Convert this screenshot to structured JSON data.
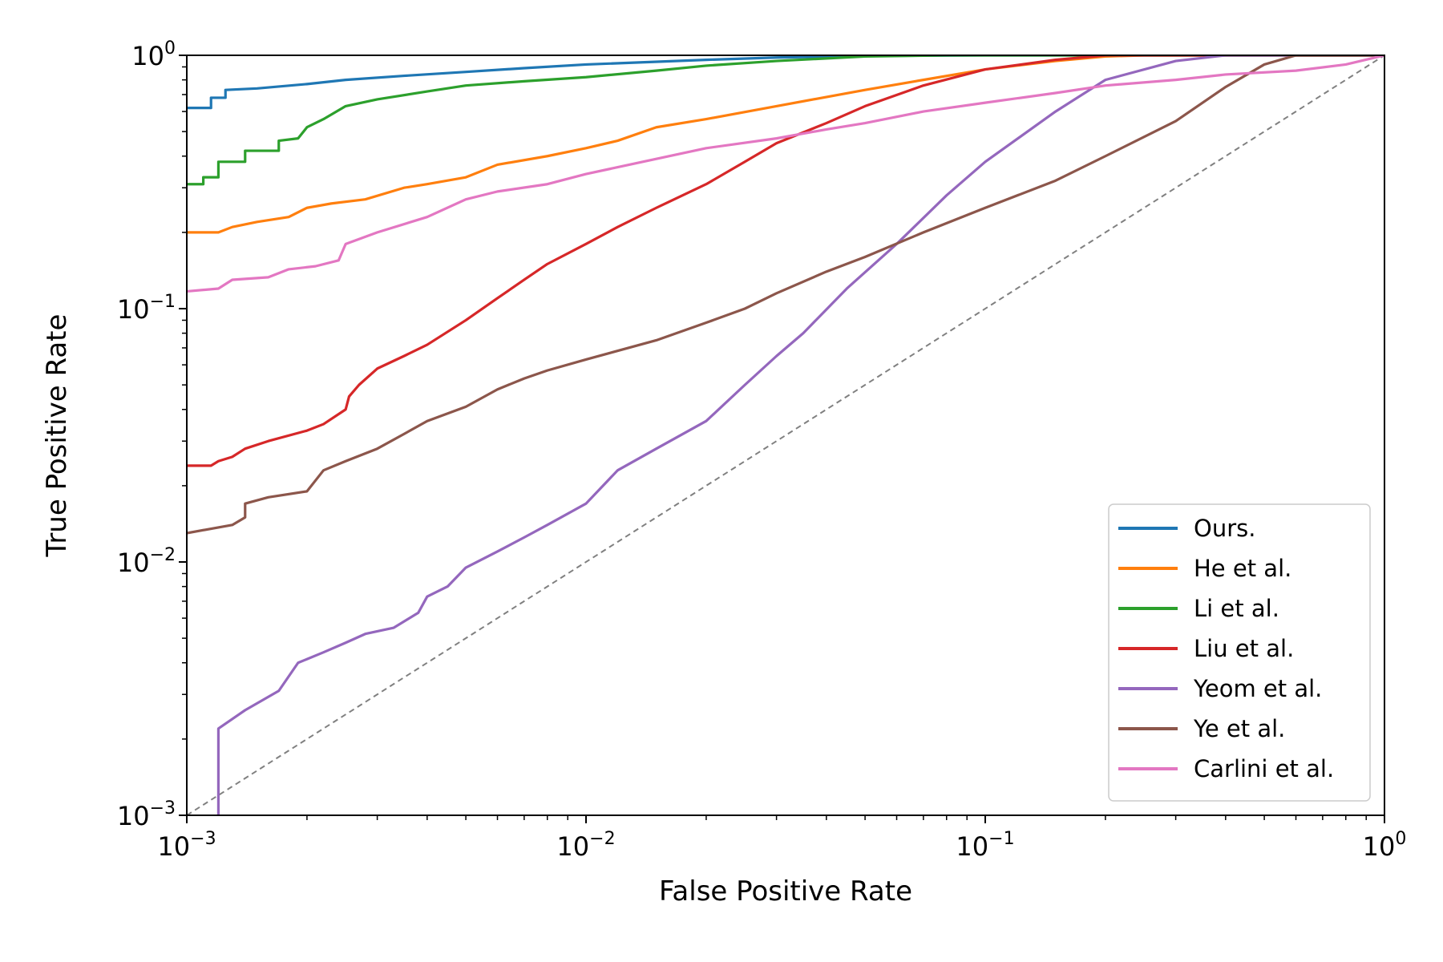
{
  "chart_data": {
    "type": "line",
    "title": "",
    "xlabel": "False Positive Rate",
    "ylabel": "True Positive Rate",
    "xscale": "log",
    "yscale": "log",
    "xlim": [
      0.001,
      1
    ],
    "ylim": [
      0.001,
      1
    ],
    "x_ticks": [
      {
        "value": 0.001,
        "base": "10",
        "exp": "−3"
      },
      {
        "value": 0.01,
        "base": "10",
        "exp": "−2"
      },
      {
        "value": 0.1,
        "base": "10",
        "exp": "−1"
      },
      {
        "value": 1,
        "base": "10",
        "exp": "0"
      }
    ],
    "y_ticks": [
      {
        "value": 0.001,
        "base": "10",
        "exp": "−3"
      },
      {
        "value": 0.01,
        "base": "10",
        "exp": "−2"
      },
      {
        "value": 0.1,
        "base": "10",
        "exp": "−1"
      },
      {
        "value": 1,
        "base": "10",
        "exp": "0"
      }
    ],
    "grid": false,
    "legend_position": "lower-right",
    "reference_line": {
      "style": "dashed",
      "color": "#808080",
      "points": [
        [
          0.001,
          0.001
        ],
        [
          1,
          1
        ]
      ]
    },
    "series": [
      {
        "name": "Ours.",
        "color": "#1f77b4",
        "points": [
          [
            0.001,
            0.62
          ],
          [
            0.00115,
            0.62
          ],
          [
            0.00115,
            0.68
          ],
          [
            0.00125,
            0.68
          ],
          [
            0.00125,
            0.73
          ],
          [
            0.0015,
            0.74
          ],
          [
            0.002,
            0.77
          ],
          [
            0.0025,
            0.8
          ],
          [
            0.0035,
            0.83
          ],
          [
            0.005,
            0.86
          ],
          [
            0.007,
            0.89
          ],
          [
            0.01,
            0.92
          ],
          [
            0.02,
            0.96
          ],
          [
            0.03,
            0.98
          ],
          [
            0.05,
            0.995
          ],
          [
            0.1,
            1.0
          ],
          [
            1,
            1.0
          ]
        ]
      },
      {
        "name": "He et al.",
        "color": "#ff7f0e",
        "points": [
          [
            0.001,
            0.2
          ],
          [
            0.0012,
            0.2
          ],
          [
            0.0013,
            0.21
          ],
          [
            0.0015,
            0.22
          ],
          [
            0.0018,
            0.23
          ],
          [
            0.002,
            0.25
          ],
          [
            0.0023,
            0.26
          ],
          [
            0.0028,
            0.27
          ],
          [
            0.0035,
            0.3
          ],
          [
            0.004,
            0.31
          ],
          [
            0.005,
            0.33
          ],
          [
            0.006,
            0.37
          ],
          [
            0.008,
            0.4
          ],
          [
            0.01,
            0.43
          ],
          [
            0.012,
            0.46
          ],
          [
            0.015,
            0.52
          ],
          [
            0.02,
            0.56
          ],
          [
            0.03,
            0.63
          ],
          [
            0.05,
            0.73
          ],
          [
            0.07,
            0.8
          ],
          [
            0.1,
            0.88
          ],
          [
            0.15,
            0.95
          ],
          [
            0.2,
            0.99
          ],
          [
            0.25,
            1.0
          ],
          [
            1,
            1.0
          ]
        ]
      },
      {
        "name": "Li et al.",
        "color": "#2ca02c",
        "points": [
          [
            0.001,
            0.31
          ],
          [
            0.0011,
            0.31
          ],
          [
            0.0011,
            0.33
          ],
          [
            0.0012,
            0.33
          ],
          [
            0.0012,
            0.38
          ],
          [
            0.0014,
            0.38
          ],
          [
            0.0014,
            0.42
          ],
          [
            0.0017,
            0.42
          ],
          [
            0.0017,
            0.46
          ],
          [
            0.0019,
            0.47
          ],
          [
            0.002,
            0.52
          ],
          [
            0.0022,
            0.56
          ],
          [
            0.0025,
            0.63
          ],
          [
            0.003,
            0.67
          ],
          [
            0.004,
            0.72
          ],
          [
            0.005,
            0.76
          ],
          [
            0.007,
            0.79
          ],
          [
            0.01,
            0.82
          ],
          [
            0.015,
            0.87
          ],
          [
            0.02,
            0.91
          ],
          [
            0.03,
            0.95
          ],
          [
            0.05,
            0.99
          ],
          [
            0.08,
            1.0
          ],
          [
            1,
            1.0
          ]
        ]
      },
      {
        "name": "Liu et al.",
        "color": "#d62728",
        "points": [
          [
            0.001,
            0.024
          ],
          [
            0.00115,
            0.024
          ],
          [
            0.0012,
            0.025
          ],
          [
            0.0013,
            0.026
          ],
          [
            0.0014,
            0.028
          ],
          [
            0.0016,
            0.03
          ],
          [
            0.002,
            0.033
          ],
          [
            0.0022,
            0.035
          ],
          [
            0.0025,
            0.04
          ],
          [
            0.00255,
            0.045
          ],
          [
            0.0027,
            0.05
          ],
          [
            0.003,
            0.058
          ],
          [
            0.0035,
            0.065
          ],
          [
            0.004,
            0.072
          ],
          [
            0.005,
            0.09
          ],
          [
            0.006,
            0.11
          ],
          [
            0.007,
            0.13
          ],
          [
            0.008,
            0.15
          ],
          [
            0.01,
            0.18
          ],
          [
            0.012,
            0.21
          ],
          [
            0.015,
            0.25
          ],
          [
            0.02,
            0.31
          ],
          [
            0.025,
            0.38
          ],
          [
            0.03,
            0.45
          ],
          [
            0.04,
            0.54
          ],
          [
            0.05,
            0.63
          ],
          [
            0.07,
            0.76
          ],
          [
            0.1,
            0.88
          ],
          [
            0.15,
            0.96
          ],
          [
            0.2,
            1.0
          ],
          [
            1,
            1.0
          ]
        ]
      },
      {
        "name": "Yeom et al.",
        "color": "#9467bd",
        "points": [
          [
            0.0012,
            0.001
          ],
          [
            0.0012,
            0.0022
          ],
          [
            0.0014,
            0.0026
          ],
          [
            0.0017,
            0.0031
          ],
          [
            0.0019,
            0.004
          ],
          [
            0.0022,
            0.0044
          ],
          [
            0.0025,
            0.0048
          ],
          [
            0.0028,
            0.0052
          ],
          [
            0.0033,
            0.0055
          ],
          [
            0.0038,
            0.0063
          ],
          [
            0.004,
            0.0073
          ],
          [
            0.0045,
            0.008
          ],
          [
            0.005,
            0.0095
          ],
          [
            0.006,
            0.011
          ],
          [
            0.007,
            0.0125
          ],
          [
            0.008,
            0.014
          ],
          [
            0.01,
            0.017
          ],
          [
            0.012,
            0.023
          ],
          [
            0.015,
            0.028
          ],
          [
            0.02,
            0.036
          ],
          [
            0.025,
            0.05
          ],
          [
            0.03,
            0.065
          ],
          [
            0.035,
            0.08
          ],
          [
            0.045,
            0.12
          ],
          [
            0.06,
            0.18
          ],
          [
            0.08,
            0.28
          ],
          [
            0.1,
            0.38
          ],
          [
            0.15,
            0.6
          ],
          [
            0.2,
            0.8
          ],
          [
            0.3,
            0.95
          ],
          [
            0.4,
            1.0
          ],
          [
            1,
            1.0
          ]
        ]
      },
      {
        "name": "Ye et al.",
        "color": "#8c564b",
        "points": [
          [
            0.001,
            0.013
          ],
          [
            0.0013,
            0.014
          ],
          [
            0.0014,
            0.015
          ],
          [
            0.0014,
            0.017
          ],
          [
            0.0016,
            0.018
          ],
          [
            0.002,
            0.019
          ],
          [
            0.0022,
            0.023
          ],
          [
            0.0025,
            0.025
          ],
          [
            0.003,
            0.028
          ],
          [
            0.0035,
            0.032
          ],
          [
            0.004,
            0.036
          ],
          [
            0.005,
            0.041
          ],
          [
            0.006,
            0.048
          ],
          [
            0.007,
            0.053
          ],
          [
            0.008,
            0.057
          ],
          [
            0.01,
            0.063
          ],
          [
            0.015,
            0.075
          ],
          [
            0.02,
            0.088
          ],
          [
            0.025,
            0.1
          ],
          [
            0.03,
            0.115
          ],
          [
            0.04,
            0.14
          ],
          [
            0.05,
            0.16
          ],
          [
            0.07,
            0.2
          ],
          [
            0.1,
            0.25
          ],
          [
            0.15,
            0.32
          ],
          [
            0.2,
            0.4
          ],
          [
            0.3,
            0.55
          ],
          [
            0.4,
            0.75
          ],
          [
            0.5,
            0.92
          ],
          [
            0.6,
            1.0
          ],
          [
            0.8,
            1.0
          ],
          [
            1,
            1.0
          ]
        ]
      },
      {
        "name": "Carlini et al.",
        "color": "#e377c2",
        "points": [
          [
            0.001,
            0.117
          ],
          [
            0.0012,
            0.12
          ],
          [
            0.0013,
            0.13
          ],
          [
            0.0016,
            0.133
          ],
          [
            0.0018,
            0.143
          ],
          [
            0.0021,
            0.147
          ],
          [
            0.0024,
            0.155
          ],
          [
            0.0025,
            0.18
          ],
          [
            0.003,
            0.2
          ],
          [
            0.004,
            0.23
          ],
          [
            0.005,
            0.27
          ],
          [
            0.006,
            0.29
          ],
          [
            0.008,
            0.31
          ],
          [
            0.01,
            0.34
          ],
          [
            0.015,
            0.39
          ],
          [
            0.02,
            0.43
          ],
          [
            0.03,
            0.47
          ],
          [
            0.04,
            0.51
          ],
          [
            0.05,
            0.54
          ],
          [
            0.07,
            0.6
          ],
          [
            0.1,
            0.65
          ],
          [
            0.15,
            0.71
          ],
          [
            0.2,
            0.76
          ],
          [
            0.3,
            0.8
          ],
          [
            0.4,
            0.84
          ],
          [
            0.6,
            0.87
          ],
          [
            0.8,
            0.92
          ],
          [
            1,
            1.0
          ]
        ]
      }
    ]
  }
}
